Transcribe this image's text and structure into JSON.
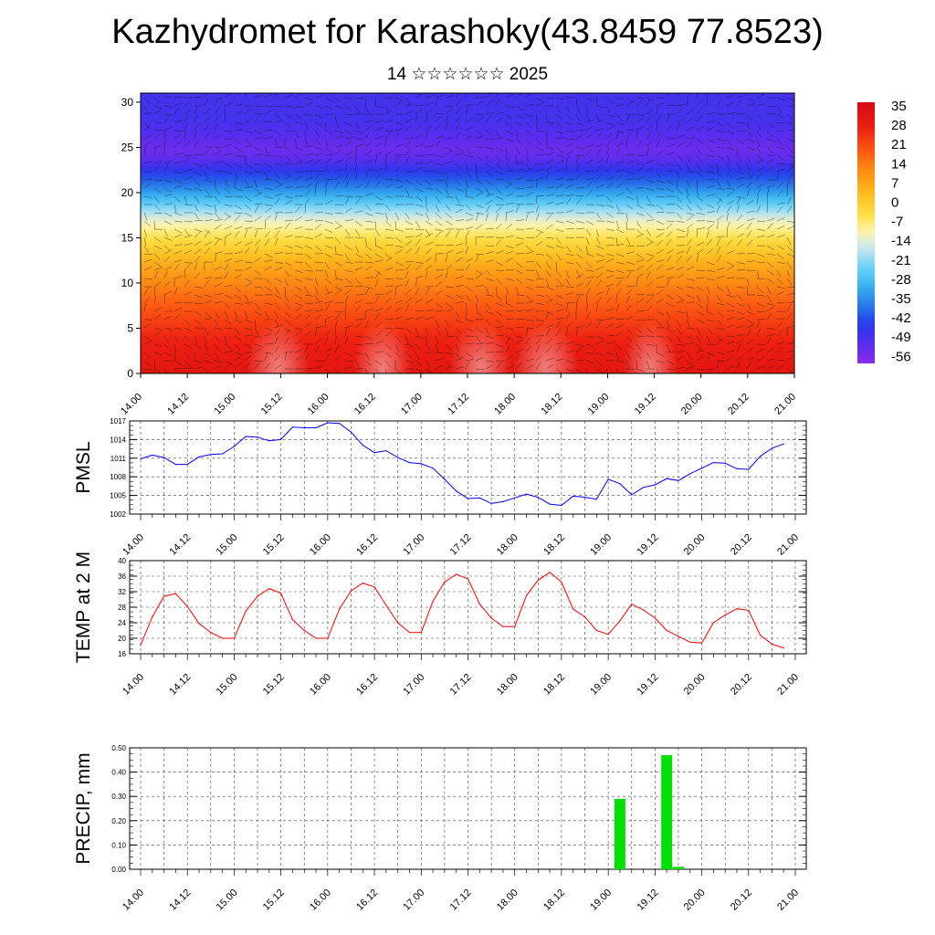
{
  "title": "Kazhydromet for Karashoky(43.8459 77.8523)",
  "subtitle": "14 ☆☆☆☆☆☆ 2025",
  "time_ticks": [
    "14.00",
    "14.12",
    "15.00",
    "15.12",
    "16.00",
    "16.12",
    "17.00",
    "17.12",
    "18.00",
    "18.12",
    "19.00",
    "19.12",
    "20.00",
    "20.12",
    "21.00"
  ],
  "chart_data": [
    {
      "type": "heatmap",
      "name": "cross-section",
      "y_ticks": [
        "0",
        "5",
        "10",
        "15",
        "20",
        "25",
        "30"
      ],
      "ylim": [
        0,
        31
      ],
      "colorbar_labels": [
        "35",
        "28",
        "21",
        "14",
        "7",
        "0",
        "-7",
        "-14",
        "-21",
        "-28",
        "-35",
        "-42",
        "-49",
        "-56"
      ],
      "colorbar_range": [
        -60,
        35
      ],
      "height_temperature_profile": [
        [
          0,
          30
        ],
        [
          4,
          25
        ],
        [
          8,
          16
        ],
        [
          12,
          5
        ],
        [
          15,
          -6
        ],
        [
          17,
          -15
        ],
        [
          19,
          -28
        ],
        [
          21,
          -40
        ],
        [
          23,
          -50
        ],
        [
          24.5,
          -56
        ],
        [
          26,
          -53
        ],
        [
          28,
          -50
        ],
        [
          31,
          -50
        ]
      ]
    },
    {
      "type": "line",
      "ylabel": "PMSL",
      "ylim": [
        1002,
        1017
      ],
      "y_ticks": [
        "1017",
        "1014",
        "1011",
        "1008",
        "1005",
        "1002"
      ],
      "color": "#0000ff",
      "x": [
        0,
        3,
        6,
        9,
        12,
        15,
        18,
        21,
        24,
        27,
        30,
        33,
        36,
        39,
        42,
        45,
        48,
        51,
        54,
        57,
        60,
        63,
        66,
        69,
        72,
        75,
        78,
        81,
        84,
        87,
        90,
        93,
        96,
        99,
        102,
        105,
        108,
        111,
        114,
        117,
        120,
        123,
        126,
        129,
        132,
        135,
        138,
        141,
        144,
        147,
        150,
        153,
        156,
        159,
        162,
        165
      ],
      "values": [
        1010.9,
        1011.5,
        1011.1,
        1010.0,
        1010.0,
        1011.2,
        1011.6,
        1011.7,
        1012.9,
        1014.5,
        1014.4,
        1013.8,
        1014.0,
        1016.0,
        1015.9,
        1015.9,
        1016.7,
        1016.6,
        1015.2,
        1013.1,
        1011.9,
        1012.2,
        1011.1,
        1010.3,
        1010.1,
        1009.4,
        1007.6,
        1005.7,
        1004.5,
        1004.6,
        1003.7,
        1004.0,
        1004.6,
        1005.2,
        1004.7,
        1003.6,
        1003.4,
        1004.9,
        1004.7,
        1004.4,
        1007.6,
        1006.9,
        1005.1,
        1006.3,
        1006.7,
        1007.7,
        1007.4,
        1008.5,
        1009.4,
        1010.3,
        1010.2,
        1009.3,
        1009.2,
        1011.3,
        1012.6,
        1013.3
      ]
    },
    {
      "type": "line",
      "ylabel": "TEMP at 2 M",
      "ylim": [
        16,
        40
      ],
      "y_ticks": [
        "40",
        "36",
        "32",
        "28",
        "24",
        "20",
        "16"
      ],
      "color": "#ff0000",
      "x": [
        0,
        3,
        6,
        9,
        12,
        15,
        18,
        21,
        24,
        27,
        30,
        33,
        36,
        39,
        42,
        45,
        48,
        51,
        54,
        57,
        60,
        63,
        66,
        69,
        72,
        75,
        78,
        81,
        84,
        87,
        90,
        93,
        96,
        99,
        102,
        105,
        108,
        111,
        114,
        117,
        120,
        123,
        126,
        129,
        132,
        135,
        138,
        141,
        144,
        147,
        150,
        153,
        156,
        159,
        162,
        165
      ],
      "values": [
        18.2,
        25.5,
        30.8,
        31.5,
        28.2,
        23.8,
        21.5,
        20.0,
        20.0,
        27.0,
        30.8,
        32.8,
        31.6,
        24.8,
        22.0,
        20.0,
        20.0,
        27.5,
        32.2,
        34.2,
        33.2,
        28.5,
        24.0,
        21.5,
        21.5,
        29.5,
        34.5,
        36.5,
        35.3,
        28.8,
        25.2,
        23.0,
        23.0,
        31.0,
        35.0,
        37.0,
        34.5,
        27.5,
        25.5,
        22.0,
        21.0,
        24.5,
        28.8,
        27.3,
        25.2,
        22.0,
        20.5,
        19.0,
        18.8,
        24.0,
        26.0,
        27.6,
        27.2,
        20.8,
        18.5,
        17.5
      ]
    },
    {
      "type": "bar",
      "ylabel": "PRECIP, mm",
      "ylim": [
        0,
        0.5
      ],
      "y_ticks": [
        "0.50",
        "0.40",
        "0.30",
        "0.20",
        "0.10",
        "0.00"
      ],
      "color": "#00e000",
      "x": [
        123,
        135,
        138
      ],
      "values": [
        0.29,
        0.47,
        0.01
      ]
    }
  ]
}
